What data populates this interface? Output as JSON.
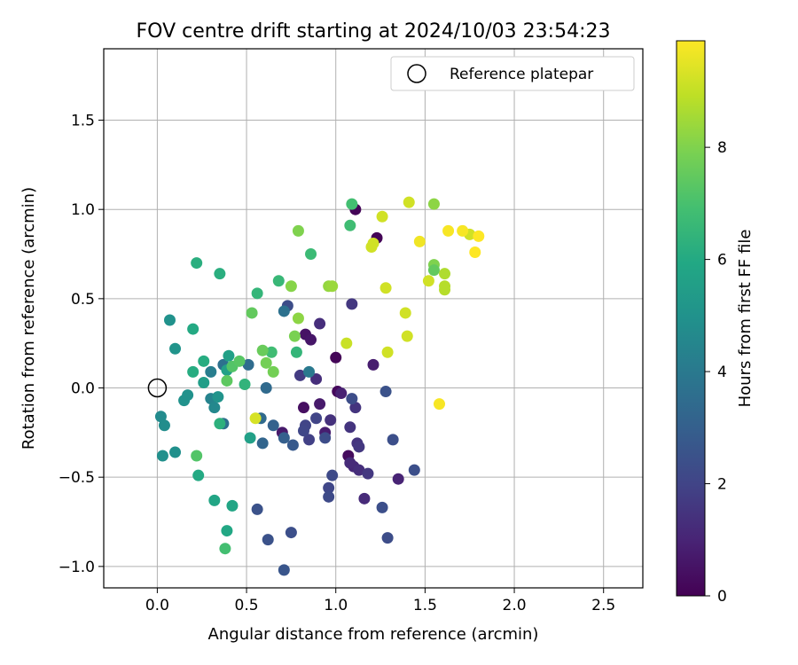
{
  "chart_data": {
    "type": "scatter",
    "title": "FOV centre drift starting at 2024/10/03 23:54:23",
    "xlabel": "Angular distance from reference (arcmin)",
    "ylabel": "Rotation from reference (arcmin)",
    "xlim": [
      -0.3,
      2.72
    ],
    "ylim": [
      -1.12,
      1.9
    ],
    "xticks": [
      0.0,
      0.5,
      1.0,
      1.5,
      2.0,
      2.5
    ],
    "xtick_labels": [
      "0.0",
      "0.5",
      "1.0",
      "1.5",
      "2.0",
      "2.5"
    ],
    "yticks": [
      -1.0,
      -0.5,
      0.0,
      0.5,
      1.0,
      1.5
    ],
    "ytick_labels": [
      "−1.0",
      "−0.5",
      "0.0",
      "0.5",
      "1.0",
      "1.5"
    ],
    "grid": true,
    "legend": {
      "position": "top-right",
      "label": "Reference platepar"
    },
    "reference_point": {
      "x": 0.0,
      "y": 0.0
    },
    "colorbar": {
      "label": "Hours from first FF file",
      "colormap": "viridis",
      "range": [
        0,
        9.9
      ],
      "ticks": [
        0,
        2,
        4,
        6,
        8
      ],
      "tick_labels": [
        "0",
        "2",
        "4",
        "6",
        "8"
      ]
    },
    "points": [
      {
        "x": 1.11,
        "y": 1.0,
        "t": 0.1
      },
      {
        "x": 1.23,
        "y": 0.84,
        "t": 0.1
      },
      {
        "x": 1.0,
        "y": 0.17,
        "t": 0.1
      },
      {
        "x": 1.01,
        "y": -0.02,
        "t": 0.2
      },
      {
        "x": 1.07,
        "y": -0.38,
        "t": 0.3
      },
      {
        "x": 0.82,
        "y": -0.11,
        "t": 0.4
      },
      {
        "x": 0.83,
        "y": 0.3,
        "t": 0.5
      },
      {
        "x": 0.86,
        "y": 0.27,
        "t": 0.6
      },
      {
        "x": 0.7,
        "y": -0.25,
        "t": 0.7
      },
      {
        "x": 0.91,
        "y": -0.09,
        "t": 0.7
      },
      {
        "x": 0.94,
        "y": -0.25,
        "t": 0.8
      },
      {
        "x": 1.03,
        "y": -0.03,
        "t": 0.9
      },
      {
        "x": 1.21,
        "y": 0.13,
        "t": 0.8
      },
      {
        "x": 1.35,
        "y": -0.51,
        "t": 1.0
      },
      {
        "x": 1.1,
        "y": -0.44,
        "t": 1.1
      },
      {
        "x": 1.08,
        "y": -0.42,
        "t": 1.2
      },
      {
        "x": 1.16,
        "y": -0.62,
        "t": 1.2
      },
      {
        "x": 1.13,
        "y": -0.46,
        "t": 1.3
      },
      {
        "x": 0.89,
        "y": 0.05,
        "t": 1.3
      },
      {
        "x": 0.91,
        "y": 0.36,
        "t": 1.3
      },
      {
        "x": 0.97,
        "y": -0.18,
        "t": 1.4
      },
      {
        "x": 1.11,
        "y": -0.11,
        "t": 1.5
      },
      {
        "x": 1.08,
        "y": -0.22,
        "t": 1.5
      },
      {
        "x": 1.12,
        "y": -0.31,
        "t": 1.5
      },
      {
        "x": 1.13,
        "y": -0.33,
        "t": 1.6
      },
      {
        "x": 1.18,
        "y": -0.48,
        "t": 1.6
      },
      {
        "x": 1.09,
        "y": 0.47,
        "t": 1.6
      },
      {
        "x": 0.8,
        "y": 0.07,
        "t": 1.7
      },
      {
        "x": 0.85,
        "y": -0.29,
        "t": 1.9
      },
      {
        "x": 0.89,
        "y": -0.17,
        "t": 2.0
      },
      {
        "x": 0.83,
        "y": -0.21,
        "t": 2.0
      },
      {
        "x": 0.82,
        "y": -0.24,
        "t": 2.1
      },
      {
        "x": 0.96,
        "y": -0.56,
        "t": 2.1
      },
      {
        "x": 0.96,
        "y": -0.61,
        "t": 2.2
      },
      {
        "x": 0.98,
        "y": -0.49,
        "t": 2.2
      },
      {
        "x": 0.94,
        "y": -0.28,
        "t": 2.3
      },
      {
        "x": 0.73,
        "y": 0.46,
        "t": 2.3
      },
      {
        "x": 0.75,
        "y": -0.81,
        "t": 2.4
      },
      {
        "x": 0.62,
        "y": -0.85,
        "t": 2.5
      },
      {
        "x": 0.56,
        "y": -0.68,
        "t": 2.5
      },
      {
        "x": 0.71,
        "y": -1.02,
        "t": 2.6
      },
      {
        "x": 1.09,
        "y": -0.06,
        "t": 2.3
      },
      {
        "x": 1.28,
        "y": -0.02,
        "t": 2.5
      },
      {
        "x": 1.32,
        "y": -0.29,
        "t": 2.4
      },
      {
        "x": 1.44,
        "y": -0.46,
        "t": 2.4
      },
      {
        "x": 1.26,
        "y": -0.67,
        "t": 2.4
      },
      {
        "x": 1.29,
        "y": -0.84,
        "t": 2.3
      },
      {
        "x": 0.76,
        "y": -0.32,
        "t": 2.8
      },
      {
        "x": 0.71,
        "y": -0.28,
        "t": 3.0
      },
      {
        "x": 0.65,
        "y": -0.21,
        "t": 3.1
      },
      {
        "x": 0.59,
        "y": -0.31,
        "t": 3.2
      },
      {
        "x": 0.58,
        "y": -0.17,
        "t": 3.4
      },
      {
        "x": 0.61,
        "y": 0.0,
        "t": 3.4
      },
      {
        "x": 0.51,
        "y": 0.13,
        "t": 3.5
      },
      {
        "x": 0.37,
        "y": -0.2,
        "t": 3.6
      },
      {
        "x": 0.37,
        "y": 0.13,
        "t": 3.7
      },
      {
        "x": 0.71,
        "y": 0.43,
        "t": 3.7
      },
      {
        "x": 0.85,
        "y": 0.09,
        "t": 4.0
      },
      {
        "x": 0.3,
        "y": 0.09,
        "t": 4.2
      },
      {
        "x": 0.3,
        "y": -0.06,
        "t": 4.4
      },
      {
        "x": 0.32,
        "y": -0.11,
        "t": 4.6
      },
      {
        "x": 0.02,
        "y": -0.16,
        "t": 4.7
      },
      {
        "x": 0.04,
        "y": -0.21,
        "t": 4.8
      },
      {
        "x": 0.03,
        "y": -0.38,
        "t": 4.9
      },
      {
        "x": 0.1,
        "y": -0.36,
        "t": 4.9
      },
      {
        "x": 0.15,
        "y": -0.07,
        "t": 5.0
      },
      {
        "x": 0.17,
        "y": -0.04,
        "t": 5.0
      },
      {
        "x": 0.34,
        "y": -0.05,
        "t": 5.1
      },
      {
        "x": 0.07,
        "y": 0.38,
        "t": 5.0
      },
      {
        "x": 0.1,
        "y": 0.22,
        "t": 5.1
      },
      {
        "x": 0.26,
        "y": 0.03,
        "t": 5.5
      },
      {
        "x": 0.39,
        "y": 0.1,
        "t": 5.6
      },
      {
        "x": 0.4,
        "y": 0.18,
        "t": 5.6
      },
      {
        "x": 0.52,
        "y": -0.28,
        "t": 5.6
      },
      {
        "x": 0.42,
        "y": -0.66,
        "t": 5.8
      },
      {
        "x": 0.32,
        "y": -0.63,
        "t": 5.8
      },
      {
        "x": 0.39,
        "y": -0.8,
        "t": 5.9
      },
      {
        "x": 0.23,
        "y": -0.49,
        "t": 6.0
      },
      {
        "x": 0.2,
        "y": 0.33,
        "t": 6.0
      },
      {
        "x": 0.2,
        "y": 0.09,
        "t": 6.1
      },
      {
        "x": 0.26,
        "y": 0.15,
        "t": 6.1
      },
      {
        "x": 0.22,
        "y": 0.7,
        "t": 6.2
      },
      {
        "x": 0.35,
        "y": 0.64,
        "t": 6.2
      },
      {
        "x": 0.35,
        "y": -0.2,
        "t": 6.3
      },
      {
        "x": 0.49,
        "y": 0.02,
        "t": 6.4
      },
      {
        "x": 0.56,
        "y": 0.53,
        "t": 6.5
      },
      {
        "x": 0.78,
        "y": 0.2,
        "t": 6.5
      },
      {
        "x": 0.68,
        "y": 0.6,
        "t": 6.6
      },
      {
        "x": 0.86,
        "y": 0.75,
        "t": 6.7
      },
      {
        "x": 0.64,
        "y": 0.2,
        "t": 6.8
      },
      {
        "x": 1.08,
        "y": 0.91,
        "t": 6.8
      },
      {
        "x": 1.09,
        "y": 1.03,
        "t": 6.9
      },
      {
        "x": 0.38,
        "y": -0.9,
        "t": 6.9
      },
      {
        "x": 0.22,
        "y": -0.38,
        "t": 7.2
      },
      {
        "x": 0.42,
        "y": 0.12,
        "t": 7.2
      },
      {
        "x": 0.46,
        "y": 0.15,
        "t": 7.3
      },
      {
        "x": 0.39,
        "y": 0.04,
        "t": 7.4
      },
      {
        "x": 0.53,
        "y": 0.42,
        "t": 7.5
      },
      {
        "x": 0.59,
        "y": 0.21,
        "t": 7.6
      },
      {
        "x": 0.61,
        "y": 0.14,
        "t": 7.8
      },
      {
        "x": 0.65,
        "y": 0.09,
        "t": 7.8
      },
      {
        "x": 0.77,
        "y": 0.29,
        "t": 7.9
      },
      {
        "x": 0.79,
        "y": 0.88,
        "t": 8.0
      },
      {
        "x": 0.75,
        "y": 0.57,
        "t": 8.1
      },
      {
        "x": 0.79,
        "y": 0.39,
        "t": 8.2
      },
      {
        "x": 0.96,
        "y": 0.57,
        "t": 8.3
      },
      {
        "x": 0.98,
        "y": 0.57,
        "t": 8.4
      },
      {
        "x": 1.55,
        "y": 0.69,
        "t": 8.0
      },
      {
        "x": 1.55,
        "y": 0.66,
        "t": 7.5
      },
      {
        "x": 1.55,
        "y": 1.03,
        "t": 8.2
      },
      {
        "x": 1.61,
        "y": 0.64,
        "t": 8.7
      },
      {
        "x": 1.61,
        "y": 0.57,
        "t": 8.8
      },
      {
        "x": 1.61,
        "y": 0.55,
        "t": 8.8
      },
      {
        "x": 1.52,
        "y": 0.6,
        "t": 9.2
      },
      {
        "x": 1.06,
        "y": 0.25,
        "t": 9.1
      },
      {
        "x": 1.2,
        "y": 0.79,
        "t": 9.2
      },
      {
        "x": 1.21,
        "y": 0.81,
        "t": 9.2
      },
      {
        "x": 1.26,
        "y": 0.96,
        "t": 9.2
      },
      {
        "x": 1.28,
        "y": 0.56,
        "t": 9.2
      },
      {
        "x": 1.29,
        "y": 0.2,
        "t": 9.2
      },
      {
        "x": 1.39,
        "y": 0.42,
        "t": 9.2
      },
      {
        "x": 1.4,
        "y": 0.29,
        "t": 9.2
      },
      {
        "x": 1.41,
        "y": 1.04,
        "t": 9.2
      },
      {
        "x": 1.75,
        "y": 0.86,
        "t": 9.2
      },
      {
        "x": 0.55,
        "y": -0.17,
        "t": 9.3
      },
      {
        "x": 1.47,
        "y": 0.82,
        "t": 9.7
      },
      {
        "x": 1.58,
        "y": -0.09,
        "t": 9.8
      },
      {
        "x": 1.63,
        "y": 0.88,
        "t": 9.8
      },
      {
        "x": 1.71,
        "y": 0.88,
        "t": 9.8
      },
      {
        "x": 1.8,
        "y": 0.85,
        "t": 9.9
      },
      {
        "x": 1.78,
        "y": 0.76,
        "t": 9.9
      }
    ]
  }
}
